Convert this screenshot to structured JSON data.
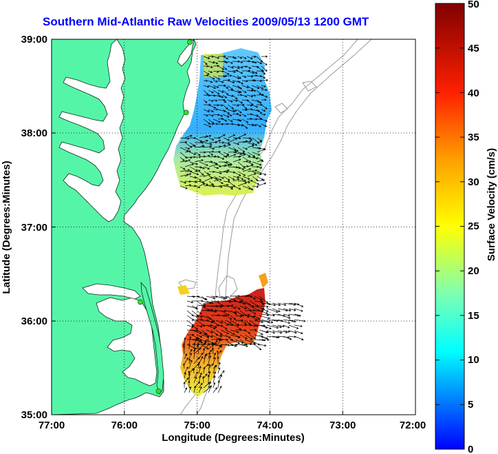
{
  "title": "Southern Mid-Atlantic Raw Velocities 2009/05/13 1200 GMT",
  "map": {
    "xlabel": "Longitude (Degrees:Minutes)",
    "ylabel": "Latitude (Degrees:Minutes)",
    "lon_ticks": [
      "77:00",
      "76:00",
      "75:00",
      "74:00",
      "73:00",
      "72:00"
    ],
    "lat_ticks": [
      "39:00",
      "38:00",
      "37:00",
      "36:00",
      "35:00"
    ],
    "lon_range": [
      -77,
      -72
    ],
    "lat_range": [
      35,
      39
    ],
    "land_color": "#55f5a8",
    "grid": "dotted"
  },
  "colorbar": {
    "label": "Surface Velocity (cm/s)",
    "ticks": [
      "0",
      "5",
      "10",
      "15",
      "20",
      "25",
      "30",
      "35",
      "40",
      "45",
      "50"
    ],
    "range": [
      0,
      50
    ],
    "colormap": "jet"
  },
  "stations": [
    {
      "lon": -75.1,
      "lat": 38.97
    },
    {
      "lon": -75.15,
      "lat": 38.22
    },
    {
      "lon": -75.78,
      "lat": 36.2
    },
    {
      "lon": -75.53,
      "lat": 35.25
    }
  ]
}
